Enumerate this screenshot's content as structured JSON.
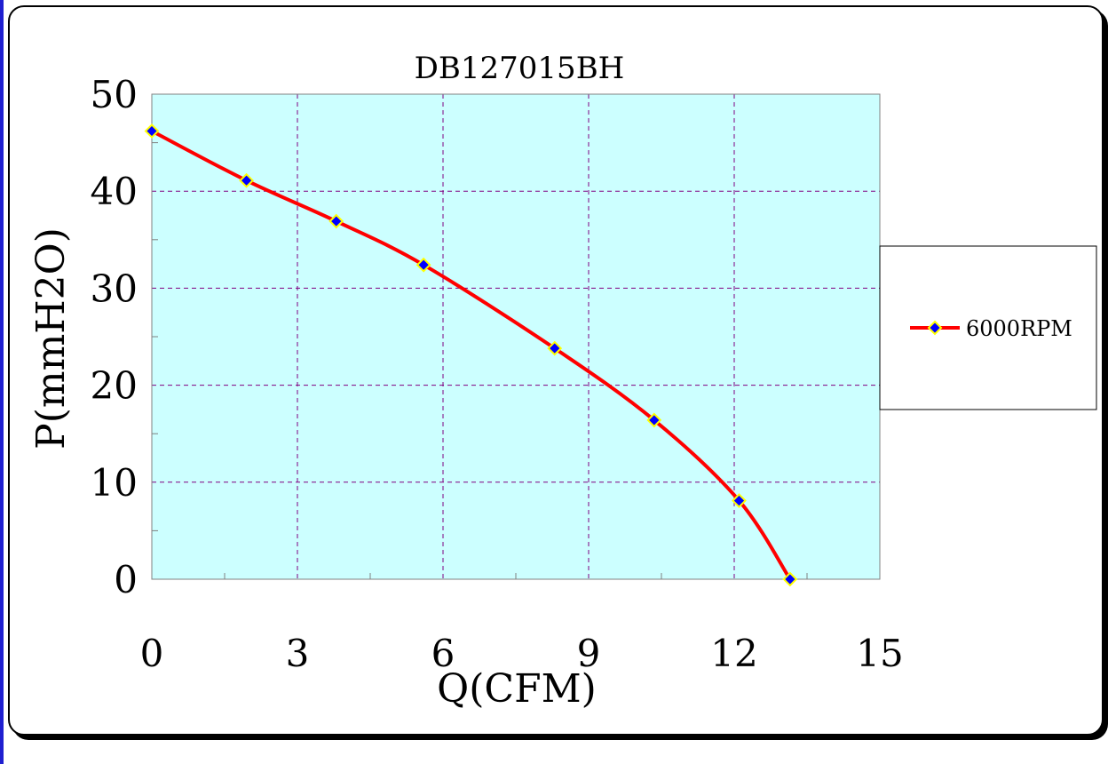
{
  "chart_data": {
    "type": "line",
    "title": "DB127015BH",
    "xlabel": "Q(CFM)",
    "ylabel": "P(mmH2O)",
    "xlim": [
      0,
      15
    ],
    "ylim": [
      0,
      50
    ],
    "x_ticks": [
      0,
      3,
      6,
      9,
      12,
      15
    ],
    "y_ticks": [
      0,
      10,
      20,
      30,
      40,
      50
    ],
    "grid": true,
    "legend": "right",
    "plot_background": "#ccffff",
    "series": [
      {
        "name": "6000RPM",
        "line_color": "#ff0000",
        "marker_color": "#0000ff",
        "marker_edge_color": "#ffff00",
        "x": [
          0,
          1.95,
          3.8,
          5.6,
          8.3,
          10.35,
          12.1,
          13.15
        ],
        "y": [
          46.2,
          41.1,
          36.9,
          32.4,
          23.8,
          16.4,
          8.1,
          0
        ]
      }
    ]
  }
}
